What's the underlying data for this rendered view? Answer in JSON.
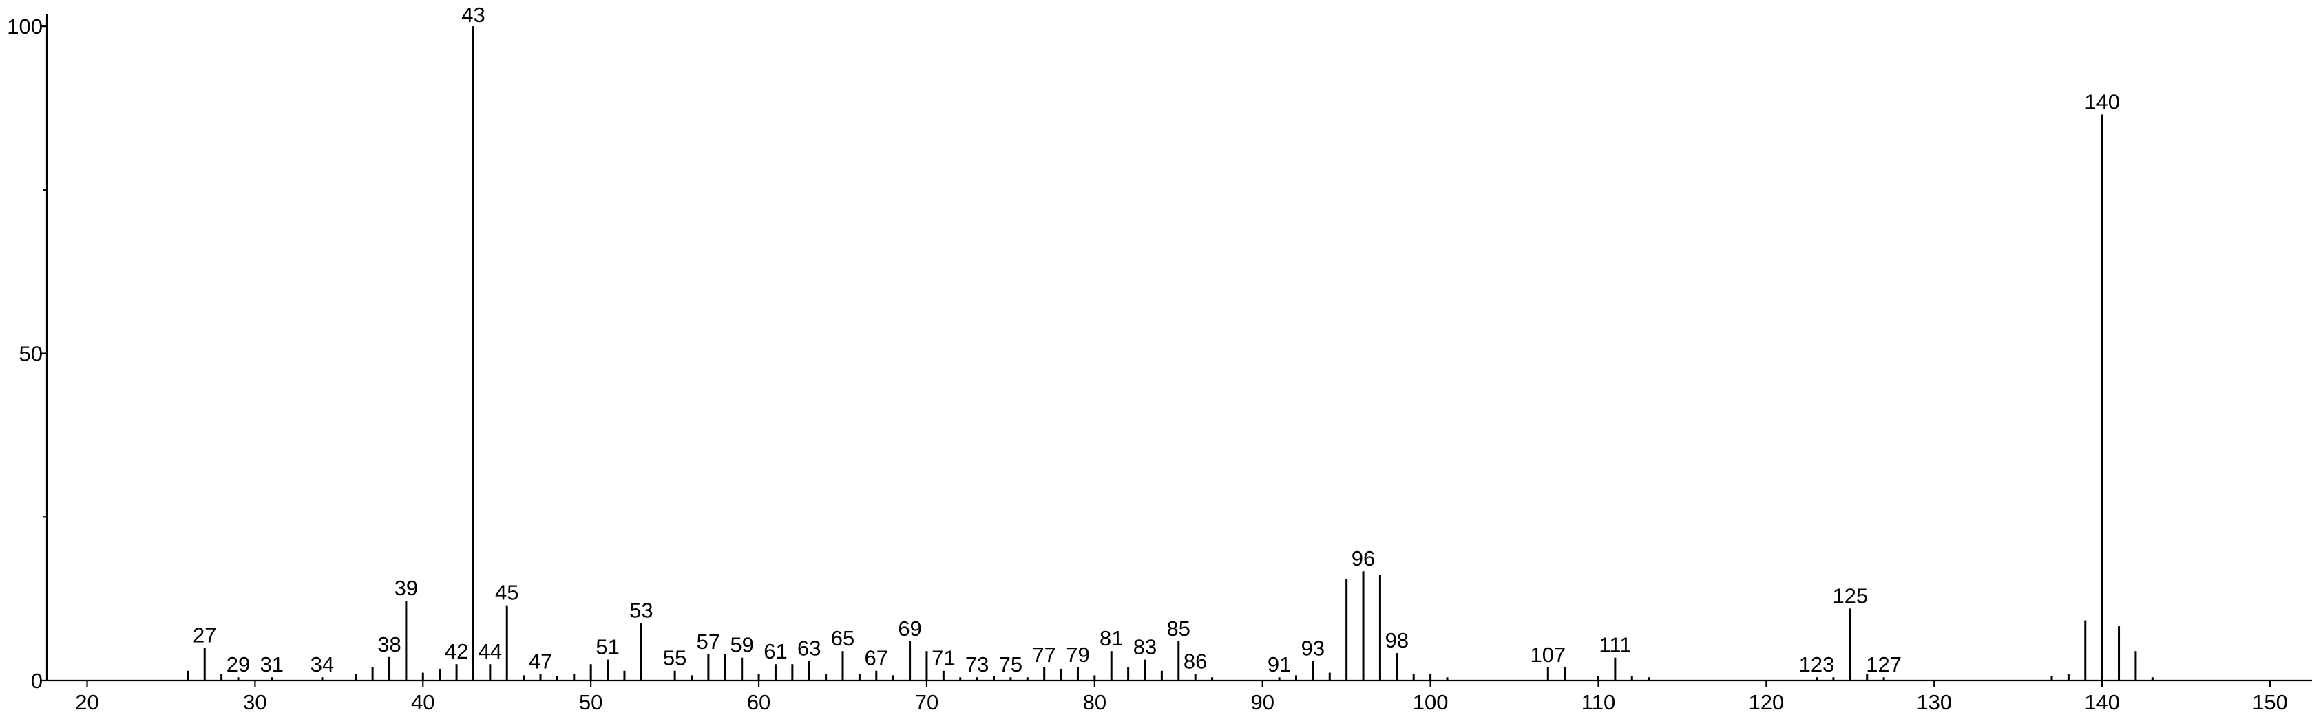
{
  "chart_data": {
    "type": "stem",
    "x": [
      26,
      27,
      28,
      29,
      31,
      34,
      36,
      37,
      38,
      39,
      40,
      41,
      42,
      43,
      44,
      45,
      46,
      47,
      48,
      49,
      50,
      51,
      52,
      53,
      55,
      56,
      57,
      58,
      59,
      60,
      61,
      62,
      63,
      64,
      65,
      66,
      67,
      68,
      69,
      70,
      71,
      72,
      73,
      74,
      75,
      76,
      77,
      78,
      79,
      80,
      81,
      82,
      83,
      84,
      85,
      86,
      87,
      91,
      92,
      93,
      94,
      95,
      96,
      97,
      98,
      99,
      100,
      101,
      107,
      108,
      110,
      111,
      112,
      113,
      123,
      124,
      125,
      126,
      127,
      137,
      138,
      139,
      140,
      141,
      142,
      143
    ],
    "values": [
      1.5,
      5,
      1,
      0.5,
      0.5,
      0.5,
      1,
      2,
      3.6,
      12.2,
      1.2,
      1.8,
      2.5,
      100,
      2.5,
      11.5,
      0.8,
      1,
      0.7,
      1,
      2.5,
      3.2,
      1.5,
      8.8,
      1.5,
      0.8,
      4,
      4,
      3.5,
      1,
      2.5,
      2.5,
      3,
      1,
      4.5,
      1,
      1.5,
      0.8,
      6,
      4.5,
      1.5,
      0.5,
      0.5,
      0.7,
      0.5,
      0.5,
      2,
      1.8,
      2,
      0.8,
      4.5,
      2,
      3.2,
      1.5,
      6,
      1,
      0.5,
      0.5,
      0.8,
      3,
      1.2,
      15.5,
      16.7,
      16.2,
      4.2,
      1,
      1,
      0.5,
      2,
      2,
      0.7,
      3.5,
      0.7,
      0.5,
      0.5,
      0.5,
      11,
      1,
      0.5,
      0.7,
      1,
      9.2,
      86.5,
      8.3,
      4.5,
      0.5
    ],
    "annotations": [
      27,
      29,
      31,
      34,
      38,
      39,
      42,
      43,
      44,
      45,
      47,
      51,
      53,
      55,
      57,
      59,
      61,
      63,
      65,
      67,
      69,
      71,
      73,
      75,
      77,
      79,
      81,
      83,
      85,
      86,
      91,
      93,
      96,
      98,
      107,
      111,
      123,
      125,
      127,
      140
    ],
    "color": "#000000",
    "xlim": [
      17.6,
      152.5
    ],
    "xticks": [
      20,
      30,
      40,
      50,
      60,
      70,
      80,
      90,
      100,
      110,
      120,
      130,
      140,
      150
    ],
    "ylim": [
      0,
      101.8
    ],
    "yticks": [
      0,
      50,
      100
    ],
    "yminorticks": [
      25,
      75
    ]
  }
}
